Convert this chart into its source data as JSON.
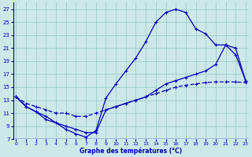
{
  "xlabel": "Graphe des températures (°C)",
  "bg_color": "#cce8e8",
  "grid_color": "#a0cccc",
  "line_color": "#0000bb",
  "xlim": [
    -0.3,
    23.3
  ],
  "ylim": [
    7,
    28
  ],
  "xticks": [
    0,
    1,
    2,
    3,
    4,
    5,
    6,
    7,
    8,
    9,
    10,
    11,
    12,
    13,
    14,
    15,
    16,
    17,
    18,
    19,
    20,
    21,
    22,
    23
  ],
  "yticks": [
    7,
    9,
    11,
    13,
    15,
    17,
    19,
    21,
    23,
    25,
    27
  ],
  "curve1_x": [
    0,
    1,
    2,
    3,
    4,
    5,
    6,
    7,
    8,
    9,
    10,
    11,
    12,
    13,
    14,
    15,
    16,
    17,
    18,
    19,
    20,
    21,
    22,
    23
  ],
  "curve1_y": [
    13.5,
    12.0,
    11.2,
    10.0,
    9.5,
    8.5,
    7.8,
    7.3,
    8.3,
    13.3,
    15.5,
    17.5,
    19.5,
    22.0,
    25.0,
    26.5,
    27.0,
    26.5,
    24.0,
    23.2,
    21.5,
    21.5,
    20.0,
    16.0
  ],
  "curve2_x": [
    0,
    1,
    2,
    3,
    4,
    5,
    6,
    7,
    8,
    9,
    10,
    11,
    12,
    13,
    14,
    15,
    16,
    17,
    18,
    19,
    20,
    21,
    22,
    23
  ],
  "curve2_y": [
    13.5,
    12.0,
    11.2,
    10.5,
    9.5,
    9.0,
    8.5,
    8.0,
    8.0,
    11.5,
    12.0,
    12.5,
    13.0,
    13.5,
    14.5,
    15.5,
    16.0,
    16.5,
    17.0,
    17.5,
    18.5,
    21.5,
    21.0,
    16.0
  ],
  "curve3_x": [
    0,
    1,
    2,
    3,
    4,
    5,
    6,
    7,
    8,
    9,
    10,
    11,
    12,
    13,
    14,
    15,
    16,
    17,
    18,
    19,
    20,
    21,
    22,
    23
  ],
  "curve3_y": [
    13.5,
    12.5,
    12.0,
    11.5,
    11.0,
    11.0,
    10.5,
    10.5,
    11.0,
    11.5,
    12.0,
    12.5,
    13.0,
    13.5,
    14.0,
    14.5,
    15.0,
    15.3,
    15.5,
    15.7,
    15.8,
    15.8,
    15.8,
    15.7
  ],
  "curve1_style": "solid",
  "curve2_style": "solid",
  "curve3_style": "dashed"
}
